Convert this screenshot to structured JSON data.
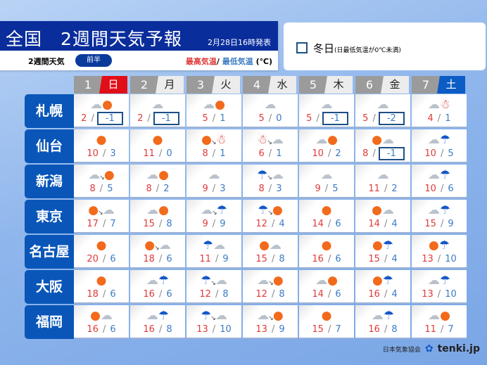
{
  "header": {
    "title": "全国　2週間天気予報",
    "issued": "2月28日16時発表",
    "sub_label": "2週間天気",
    "half_badge": "前半",
    "hi_label": "最高気温",
    "sep": "/ ",
    "lo_label": "最低気温",
    "unit": " (℃)"
  },
  "legend": {
    "winter_label": "冬日",
    "winter_note": "(日最低気温が0℃未満)"
  },
  "days": [
    {
      "num": "1",
      "wk": "日",
      "type": "sun"
    },
    {
      "num": "2",
      "wk": "月",
      "type": ""
    },
    {
      "num": "3",
      "wk": "火",
      "type": ""
    },
    {
      "num": "4",
      "wk": "水",
      "type": ""
    },
    {
      "num": "5",
      "wk": "木",
      "type": ""
    },
    {
      "num": "6",
      "wk": "金",
      "type": ""
    },
    {
      "num": "7",
      "wk": "土",
      "type": "sat"
    }
  ],
  "colors": {
    "sunday": "#e20e17",
    "saturday": "#0b5cc4",
    "city": "#0a56b8",
    "title": "#0a2d9c",
    "high": "#e03a3a",
    "low": "#3b7bc4"
  },
  "cities": [
    {
      "name": "札幌",
      "cells": [
        {
          "w": [
            "cloud",
            "sometimes",
            "sun"
          ],
          "hi": "2",
          "lo": "-1",
          "winter": true
        },
        {
          "w": [
            "cloud"
          ],
          "hi": "2",
          "lo": "-1",
          "winter": true
        },
        {
          "w": [
            "cloud",
            "sometimes",
            "sun"
          ],
          "hi": "5",
          "lo": "1"
        },
        {
          "w": [
            "cloud"
          ],
          "hi": "5",
          "lo": "0"
        },
        {
          "w": [
            "cloud"
          ],
          "hi": "5",
          "lo": "-1",
          "winter": true
        },
        {
          "w": [
            "cloud"
          ],
          "hi": "5",
          "lo": "-2",
          "winter": true
        },
        {
          "w": [
            "cloud",
            "sometimes",
            "snow"
          ],
          "hi": "4",
          "lo": "1"
        }
      ]
    },
    {
      "name": "仙台",
      "cells": [
        {
          "w": [
            "sun"
          ],
          "hi": "10",
          "lo": "3"
        },
        {
          "w": [
            "sun"
          ],
          "hi": "11",
          "lo": "0"
        },
        {
          "w": [
            "sun",
            "then",
            "snow"
          ],
          "hi": "8",
          "lo": "1"
        },
        {
          "w": [
            "snow",
            "then",
            "cloud"
          ],
          "hi": "6",
          "lo": "1"
        },
        {
          "w": [
            "cloud",
            "sometimes",
            "sun"
          ],
          "hi": "10",
          "lo": "2"
        },
        {
          "w": [
            "sun",
            "sometimes",
            "cloud"
          ],
          "hi": "8",
          "lo": "-1",
          "winter": true
        },
        {
          "w": [
            "cloud",
            "sometimes",
            "rain"
          ],
          "hi": "10",
          "lo": "5"
        }
      ]
    },
    {
      "name": "新潟",
      "cells": [
        {
          "w": [
            "cloud",
            "then",
            "sun"
          ],
          "hi": "8",
          "lo": "5"
        },
        {
          "w": [
            "cloud",
            "sometimes",
            "sun"
          ],
          "hi": "8",
          "lo": "2"
        },
        {
          "w": [
            "cloud"
          ],
          "hi": "9",
          "lo": "3"
        },
        {
          "w": [
            "rain",
            "then",
            "cloud"
          ],
          "hi": "8",
          "lo": "3"
        },
        {
          "w": [
            "cloud"
          ],
          "hi": "9",
          "lo": "5"
        },
        {
          "w": [
            "cloud"
          ],
          "hi": "11",
          "lo": "2"
        },
        {
          "w": [
            "cloud",
            "sometimes",
            "rain"
          ],
          "hi": "10",
          "lo": "6"
        }
      ]
    },
    {
      "name": "東京",
      "cells": [
        {
          "w": [
            "sun",
            "then",
            "cloud"
          ],
          "hi": "17",
          "lo": "7"
        },
        {
          "w": [
            "cloud",
            "sometimes",
            "sun"
          ],
          "hi": "15",
          "lo": "8"
        },
        {
          "w": [
            "cloud",
            "then",
            "rain"
          ],
          "hi": "9",
          "lo": "9"
        },
        {
          "w": [
            "rain",
            "then",
            "sun"
          ],
          "hi": "12",
          "lo": "4"
        },
        {
          "w": [
            "sun"
          ],
          "hi": "14",
          "lo": "6"
        },
        {
          "w": [
            "sun",
            "sometimes",
            "cloud"
          ],
          "hi": "14",
          "lo": "4"
        },
        {
          "w": [
            "cloud",
            "sometimes",
            "rain"
          ],
          "hi": "15",
          "lo": "9"
        }
      ]
    },
    {
      "name": "名古屋",
      "cells": [
        {
          "w": [
            "sun"
          ],
          "hi": "20",
          "lo": "6"
        },
        {
          "w": [
            "sun",
            "then",
            "cloud"
          ],
          "hi": "18",
          "lo": "6"
        },
        {
          "w": [
            "rain",
            "sometimes",
            "cloud"
          ],
          "hi": "11",
          "lo": "9"
        },
        {
          "w": [
            "sun",
            "sometimes",
            "cloud"
          ],
          "hi": "15",
          "lo": "8"
        },
        {
          "w": [
            "sun"
          ],
          "hi": "16",
          "lo": "6"
        },
        {
          "w": [
            "sun",
            "sometimes",
            "rain"
          ],
          "hi": "15",
          "lo": "4"
        },
        {
          "w": [
            "sun",
            "sometimes",
            "rain"
          ],
          "hi": "13",
          "lo": "10"
        }
      ]
    },
    {
      "name": "大阪",
      "cells": [
        {
          "w": [
            "sun"
          ],
          "hi": "18",
          "lo": "6"
        },
        {
          "w": [
            "cloud",
            "sometimes",
            "rain"
          ],
          "hi": "16",
          "lo": "6"
        },
        {
          "w": [
            "rain",
            "then",
            "cloud"
          ],
          "hi": "12",
          "lo": "8"
        },
        {
          "w": [
            "cloud",
            "then",
            "sun"
          ],
          "hi": "12",
          "lo": "8"
        },
        {
          "w": [
            "cloud",
            "sometimes",
            "sun"
          ],
          "hi": "14",
          "lo": "6"
        },
        {
          "w": [
            "sun",
            "sometimes",
            "rain"
          ],
          "hi": "16",
          "lo": "4"
        },
        {
          "w": [
            "cloud",
            "sometimes",
            "rain"
          ],
          "hi": "13",
          "lo": "10"
        }
      ]
    },
    {
      "name": "福岡",
      "cells": [
        {
          "w": [
            "sun",
            "sometimes",
            "cloud"
          ],
          "hi": "16",
          "lo": "6"
        },
        {
          "w": [
            "cloud",
            "sometimes",
            "rain"
          ],
          "hi": "16",
          "lo": "8"
        },
        {
          "w": [
            "rain",
            "then",
            "cloud"
          ],
          "hi": "13",
          "lo": "10"
        },
        {
          "w": [
            "cloud",
            "then",
            "sun"
          ],
          "hi": "13",
          "lo": "9"
        },
        {
          "w": [
            "sun"
          ],
          "hi": "15",
          "lo": "7"
        },
        {
          "w": [
            "cloud",
            "sometimes",
            "rain"
          ],
          "hi": "16",
          "lo": "8"
        },
        {
          "w": [
            "cloud",
            "sometimes",
            "sun"
          ],
          "hi": "11",
          "lo": "7"
        }
      ]
    }
  ],
  "footer": {
    "org": "日本気象協会",
    "brand": "tenki.jp"
  }
}
